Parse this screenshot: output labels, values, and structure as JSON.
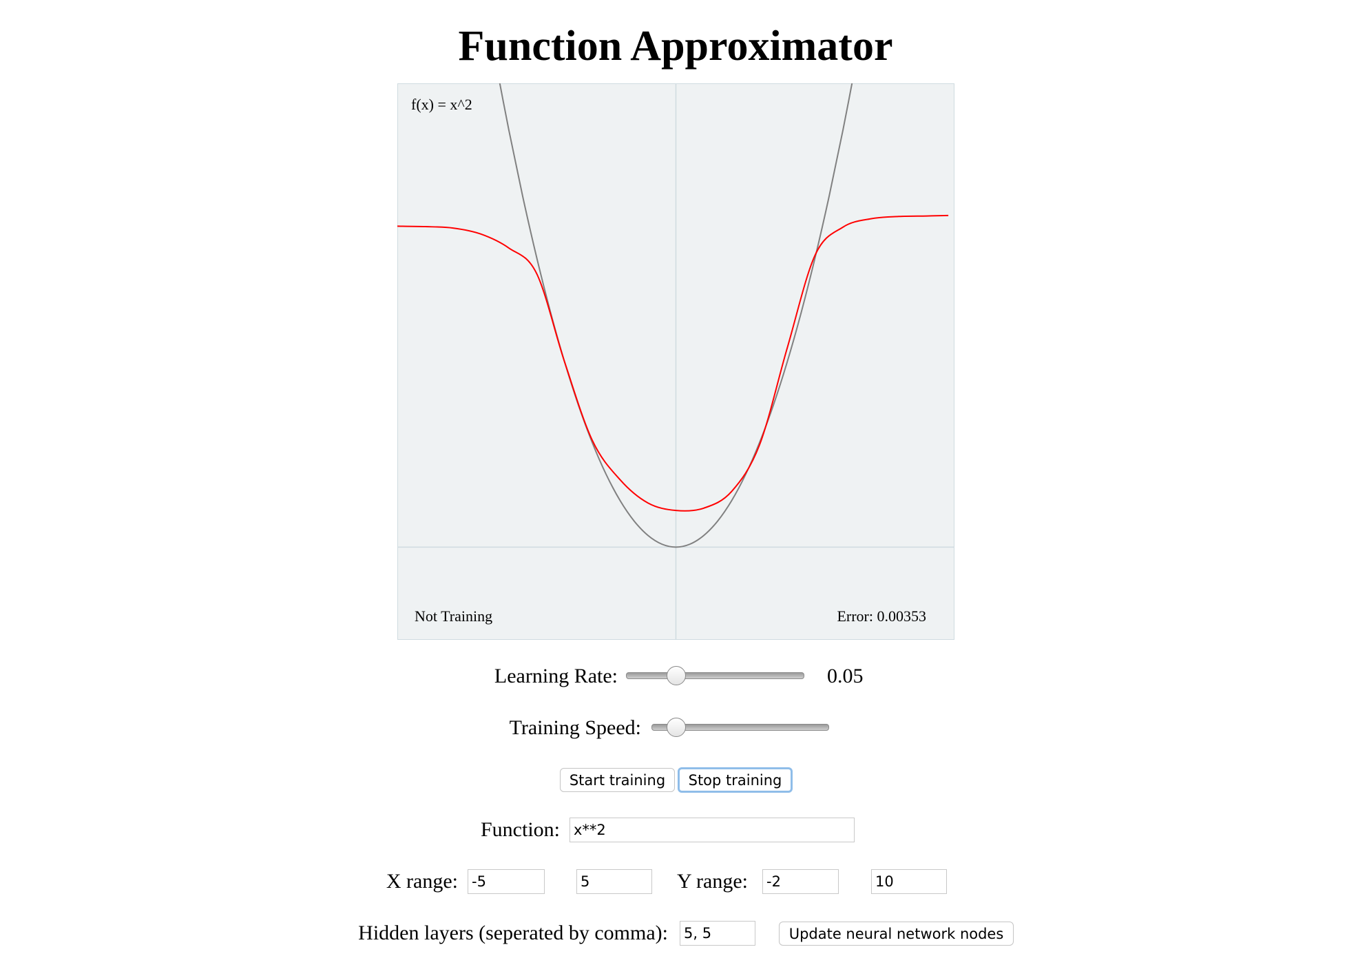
{
  "header": {
    "title": "Function Approximator"
  },
  "plot": {
    "function_label": "f(x) = x^2",
    "status": "Not Training",
    "error": "Error: 0.00353",
    "target_curve": {
      "x": [
        -3.25,
        -3,
        -2.75,
        -2.5,
        -2.25,
        -2,
        -1.75,
        -1.5,
        -1.25,
        -1,
        -0.75,
        -0.5,
        -0.25,
        0,
        0.25,
        0.5,
        0.75,
        1,
        1.25,
        1.5,
        1.75,
        2,
        2.25,
        2.5,
        2.75,
        3,
        3.25
      ],
      "y": [
        10.5625,
        9,
        7.5625,
        6.25,
        5.0625,
        4,
        3.0625,
        2.25,
        1.5625,
        1,
        0.5625,
        0.25,
        0.0625,
        0,
        0.0625,
        0.25,
        0.5625,
        1,
        1.5625,
        2.25,
        3.0625,
        4,
        5.0625,
        6.25,
        7.5625,
        9,
        10.5625
      ]
    },
    "approximation": {
      "x": [
        -5,
        -4.5,
        -4,
        -3.5,
        -3,
        -2.5,
        -2,
        -1.5,
        -1,
        -0.5,
        0,
        0.5,
        1,
        1.5,
        2,
        2.5,
        3,
        3.5,
        4,
        4.5,
        4.89
      ],
      "y": [
        6.92,
        6.91,
        6.88,
        6.75,
        6.45,
        5.9,
        4.0,
        2.3,
        1.45,
        0.95,
        0.79,
        0.84,
        1.2,
        2.2,
        4.3,
        6.3,
        6.9,
        7.08,
        7.13,
        7.14,
        7.15
      ]
    }
  },
  "controls": {
    "learning_rate": {
      "label": "Learning Rate:",
      "value": 0.05
    },
    "training_speed": {
      "label": "Training Speed:"
    },
    "buttons": [
      "Start training",
      "Stop training"
    ],
    "function": {
      "label": "Function:",
      "value": "x**2"
    },
    "x_range": {
      "label": "X range:",
      "min": -5,
      "max": 5
    },
    "y_range": {
      "label": "Y range:",
      "min": -2,
      "max": 10
    },
    "hidden_layers": {
      "label": "Hidden layers (seperated by comma):",
      "value": "5, 5",
      "button": "Update neural network nodes"
    }
  }
}
